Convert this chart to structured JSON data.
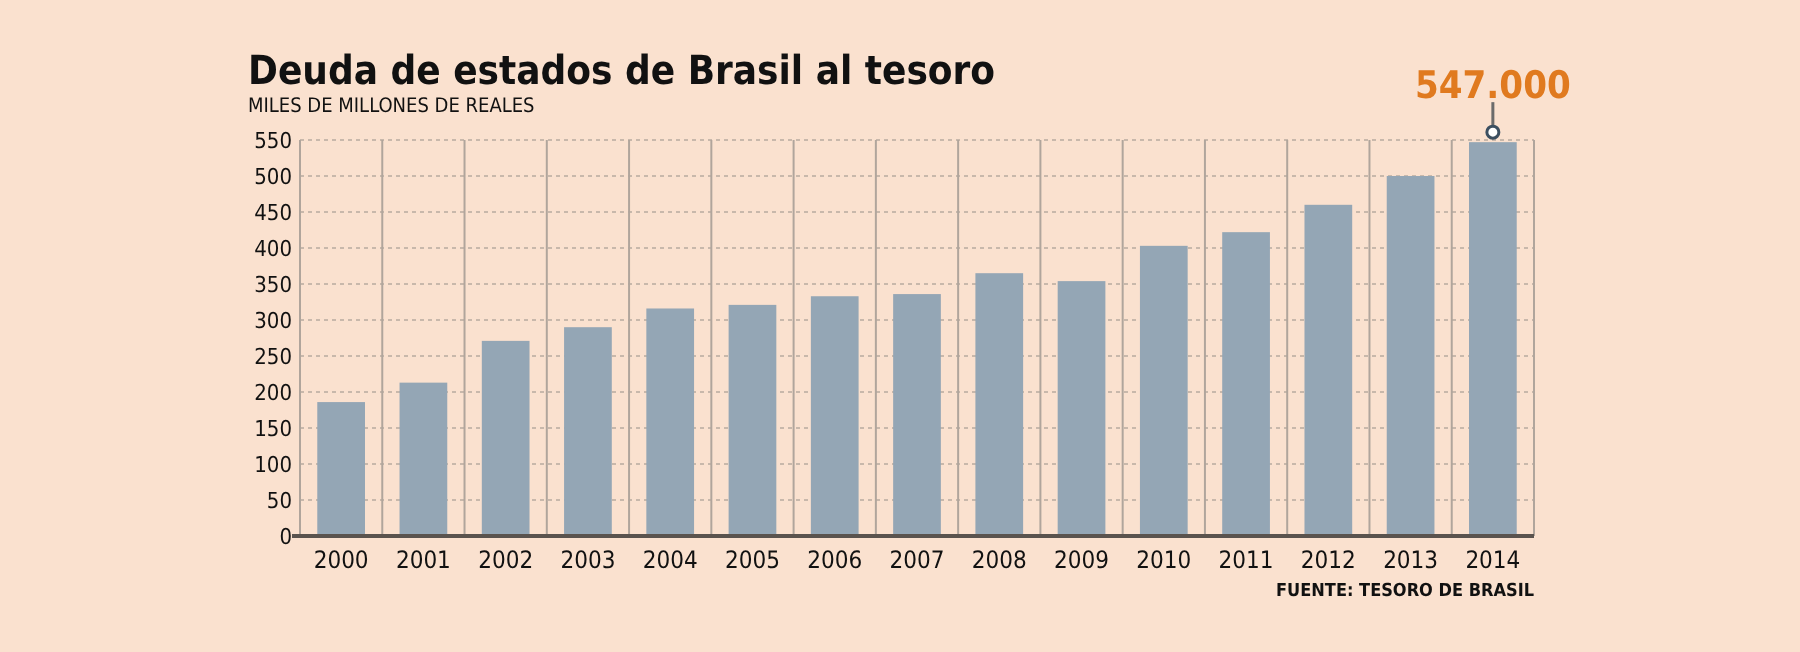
{
  "chart_data": {
    "type": "bar",
    "title": "Deuda de estados de Brasil al tesoro",
    "subtitle": "MILES DE MILLONES DE REALES",
    "categories": [
      "2000",
      "2001",
      "2002",
      "2003",
      "2004",
      "2005",
      "2006",
      "2007",
      "2008",
      "2009",
      "2010",
      "2011",
      "2012",
      "2013",
      "2014"
    ],
    "values": [
      186,
      213,
      271,
      290,
      316,
      321,
      333,
      336,
      365,
      354,
      403,
      422,
      460,
      500,
      547
    ],
    "color": "#94a6b5",
    "ylim": [
      0,
      550
    ],
    "yticks": [
      0,
      50,
      100,
      150,
      200,
      250,
      300,
      350,
      400,
      450,
      500,
      550
    ],
    "grid": true,
    "annotations": [
      {
        "text": "547.000",
        "x": "2014",
        "y": 547
      },
      "FUENTE: TESORO DE BRASIL"
    ]
  }
}
